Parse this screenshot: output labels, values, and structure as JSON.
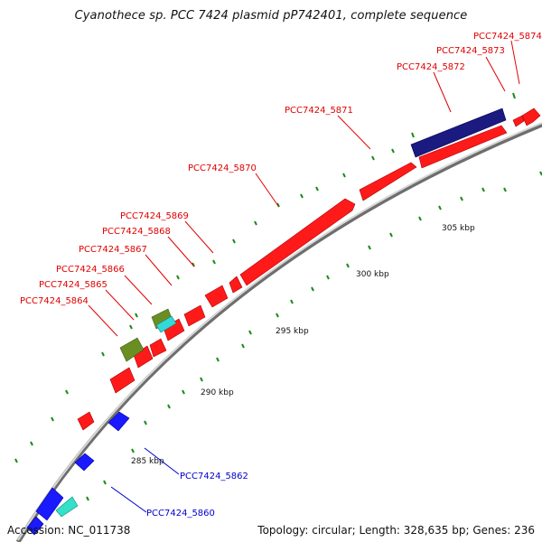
{
  "title": "Cyanothece sp. PCC 7424 plasmid pP742401, complete sequence",
  "footer": {
    "accession": "Accession: NC_011738",
    "summary": "Topology: circular; Length: 328,635 bp; Genes: 236"
  },
  "scale_labels": [
    "285 kbp",
    "290 kbp",
    "295 kbp",
    "300 kbp",
    "305 kbp"
  ],
  "gene_labels": [
    {
      "text": "PCC7424_5874",
      "color": "#e00000"
    },
    {
      "text": "PCC7424_5873",
      "color": "#e00000"
    },
    {
      "text": "PCC7424_5872",
      "color": "#e00000"
    },
    {
      "text": "PCC7424_5871",
      "color": "#e00000"
    },
    {
      "text": "PCC7424_5870",
      "color": "#e00000"
    },
    {
      "text": "PCC7424_5869",
      "color": "#e00000"
    },
    {
      "text": "PCC7424_5868",
      "color": "#e00000"
    },
    {
      "text": "PCC7424_5867",
      "color": "#e00000"
    },
    {
      "text": "PCC7424_5866",
      "color": "#e00000"
    },
    {
      "text": "PCC7424_5865",
      "color": "#e00000"
    },
    {
      "text": "PCC7424_5864",
      "color": "#e00000"
    },
    {
      "text": "PCC7424_5862",
      "color": "#0000cc"
    },
    {
      "text": "PCC7424_5860",
      "color": "#0000cc"
    }
  ],
  "colors": {
    "forward_cds": "#ff1a1a",
    "reverse_cds": "#1a1aff",
    "trna": "#1a1a80",
    "rrna": "#6b8e23",
    "misc": "#33e0c8",
    "backbone": "#808080",
    "tick": "#1a8a1a"
  }
}
